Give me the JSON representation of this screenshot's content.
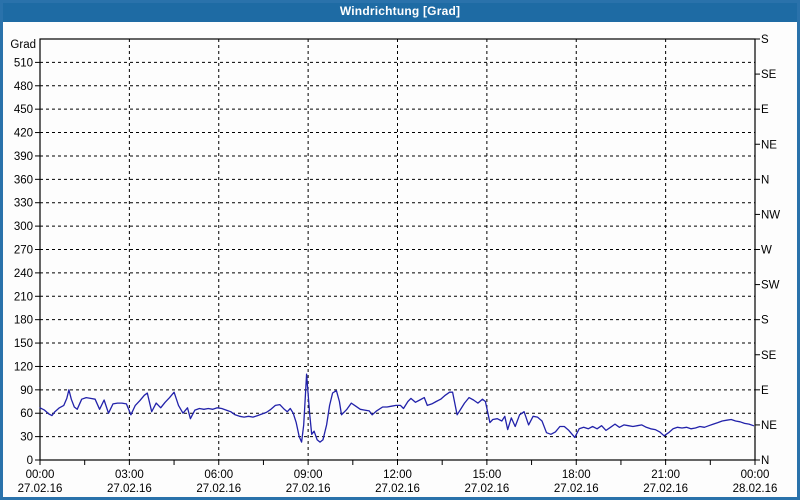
{
  "window": {
    "title": "Windrichtung [Grad]"
  },
  "colors": {
    "titlebar": "#1e6ba4",
    "frame": "#2a72ab",
    "title_text": "#ffffff",
    "plot_background": "#fdfdfd",
    "plot_border": "#000000",
    "grid": "#000000",
    "label": "#000000",
    "series_line": "#2222aa"
  },
  "chart_data": {
    "type": "line",
    "title": "Windrichtung [Grad]",
    "ylabel": "Grad",
    "grid": "dashed, every 30 deg horizontal, every 3 h vertical",
    "legend_position": "none",
    "y_axis_left": {
      "label": "Grad",
      "min": 0,
      "max": 540,
      "tick_step": 30,
      "tick_labels": [
        0,
        30,
        60,
        90,
        120,
        150,
        180,
        210,
        240,
        270,
        300,
        330,
        360,
        390,
        420,
        450,
        480,
        510
      ]
    },
    "y_axis_right": {
      "unit": "compass",
      "tick_step_degrees": 45,
      "labels_bottom_to_top": [
        "N",
        "NE",
        "E",
        "SE",
        "S",
        "SW",
        "W",
        "NW",
        "N",
        "NE",
        "E",
        "SE",
        "S"
      ]
    },
    "x_axis": {
      "range_hours": [
        0,
        24
      ],
      "major_tick_hours": 3,
      "minor_tick_hours": 1.5,
      "ticks": [
        {
          "hour": 0,
          "time": "00:00",
          "date": "27.02.16"
        },
        {
          "hour": 3,
          "time": "03:00",
          "date": "27.02.16"
        },
        {
          "hour": 6,
          "time": "06:00",
          "date": "27.02.16"
        },
        {
          "hour": 9,
          "time": "09:00",
          "date": "27.02.16"
        },
        {
          "hour": 12,
          "time": "12:00",
          "date": "27.02.16"
        },
        {
          "hour": 15,
          "time": "15:00",
          "date": "27.02.16"
        },
        {
          "hour": 18,
          "time": "18:00",
          "date": "27.02.16"
        },
        {
          "hour": 21,
          "time": "21:00",
          "date": "27.02.16"
        },
        {
          "hour": 24,
          "time": "00:00",
          "date": "28.02.16"
        }
      ]
    },
    "series": [
      {
        "name": "Windrichtung",
        "color": "#2222aa",
        "points_hour_deg": [
          [
            0.0,
            67
          ],
          [
            0.15,
            64
          ],
          [
            0.3,
            59
          ],
          [
            0.4,
            57
          ],
          [
            0.5,
            62
          ],
          [
            0.65,
            67
          ],
          [
            0.8,
            70
          ],
          [
            0.9,
            79
          ],
          [
            0.97,
            90
          ],
          [
            1.05,
            78
          ],
          [
            1.15,
            68
          ],
          [
            1.25,
            65
          ],
          [
            1.4,
            78
          ],
          [
            1.55,
            80
          ],
          [
            1.7,
            79
          ],
          [
            1.85,
            78
          ],
          [
            2.0,
            65
          ],
          [
            2.15,
            77
          ],
          [
            2.3,
            60
          ],
          [
            2.45,
            72
          ],
          [
            2.6,
            73
          ],
          [
            2.75,
            73
          ],
          [
            2.9,
            72
          ],
          [
            3.05,
            58
          ],
          [
            3.2,
            70
          ],
          [
            3.35,
            76
          ],
          [
            3.5,
            83
          ],
          [
            3.6,
            86
          ],
          [
            3.75,
            62
          ],
          [
            3.9,
            73
          ],
          [
            4.05,
            67
          ],
          [
            4.2,
            74
          ],
          [
            4.35,
            80
          ],
          [
            4.5,
            87
          ],
          [
            4.65,
            70
          ],
          [
            4.8,
            60
          ],
          [
            4.95,
            67
          ],
          [
            5.05,
            53
          ],
          [
            5.2,
            64
          ],
          [
            5.35,
            66
          ],
          [
            5.5,
            65
          ],
          [
            5.65,
            66
          ],
          [
            5.8,
            65
          ],
          [
            5.95,
            67
          ],
          [
            6.1,
            66
          ],
          [
            6.25,
            64
          ],
          [
            6.4,
            62
          ],
          [
            6.55,
            58
          ],
          [
            6.7,
            56
          ],
          [
            6.85,
            55
          ],
          [
            7.0,
            56
          ],
          [
            7.15,
            55
          ],
          [
            7.3,
            57
          ],
          [
            7.45,
            59
          ],
          [
            7.6,
            61
          ],
          [
            7.75,
            65
          ],
          [
            7.9,
            70
          ],
          [
            8.05,
            71
          ],
          [
            8.2,
            65
          ],
          [
            8.3,
            62
          ],
          [
            8.4,
            66
          ],
          [
            8.5,
            60
          ],
          [
            8.6,
            48
          ],
          [
            8.7,
            30
          ],
          [
            8.78,
            23
          ],
          [
            8.85,
            45
          ],
          [
            8.95,
            110
          ],
          [
            9.05,
            60
          ],
          [
            9.12,
            33
          ],
          [
            9.2,
            37
          ],
          [
            9.3,
            26
          ],
          [
            9.4,
            23
          ],
          [
            9.5,
            26
          ],
          [
            9.62,
            45
          ],
          [
            9.72,
            70
          ],
          [
            9.82,
            86
          ],
          [
            9.95,
            89
          ],
          [
            10.05,
            75
          ],
          [
            10.12,
            58
          ],
          [
            10.3,
            65
          ],
          [
            10.45,
            73
          ],
          [
            10.6,
            69
          ],
          [
            10.75,
            65
          ],
          [
            10.9,
            64
          ],
          [
            11.05,
            63
          ],
          [
            11.15,
            58
          ],
          [
            11.3,
            63
          ],
          [
            11.5,
            68
          ],
          [
            11.65,
            68
          ],
          [
            11.8,
            69
          ],
          [
            11.95,
            70
          ],
          [
            12.1,
            70
          ],
          [
            12.2,
            66
          ],
          [
            12.35,
            75
          ],
          [
            12.45,
            79
          ],
          [
            12.6,
            74
          ],
          [
            12.75,
            77
          ],
          [
            12.9,
            80
          ],
          [
            13.0,
            70
          ],
          [
            13.15,
            72
          ],
          [
            13.3,
            75
          ],
          [
            13.45,
            78
          ],
          [
            13.6,
            83
          ],
          [
            13.75,
            87
          ],
          [
            13.85,
            87
          ],
          [
            14.0,
            58
          ],
          [
            14.1,
            64
          ],
          [
            14.25,
            73
          ],
          [
            14.4,
            80
          ],
          [
            14.55,
            77
          ],
          [
            14.7,
            73
          ],
          [
            14.85,
            78
          ],
          [
            14.95,
            75
          ],
          [
            15.1,
            48
          ],
          [
            15.2,
            52
          ],
          [
            15.35,
            53
          ],
          [
            15.5,
            50
          ],
          [
            15.6,
            56
          ],
          [
            15.7,
            39
          ],
          [
            15.82,
            54
          ],
          [
            15.95,
            43
          ],
          [
            16.1,
            58
          ],
          [
            16.25,
            62
          ],
          [
            16.4,
            45
          ],
          [
            16.55,
            56
          ],
          [
            16.7,
            55
          ],
          [
            16.85,
            50
          ],
          [
            17.0,
            35
          ],
          [
            17.15,
            33
          ],
          [
            17.3,
            36
          ],
          [
            17.45,
            43
          ],
          [
            17.6,
            43
          ],
          [
            17.75,
            38
          ],
          [
            17.95,
            29
          ],
          [
            18.1,
            40
          ],
          [
            18.25,
            42
          ],
          [
            18.4,
            40
          ],
          [
            18.55,
            43
          ],
          [
            18.7,
            40
          ],
          [
            18.85,
            44
          ],
          [
            19.0,
            38
          ],
          [
            19.15,
            42
          ],
          [
            19.3,
            46
          ],
          [
            19.45,
            42
          ],
          [
            19.6,
            45
          ],
          [
            19.75,
            44
          ],
          [
            19.9,
            43
          ],
          [
            20.05,
            44
          ],
          [
            20.2,
            45
          ],
          [
            20.35,
            42
          ],
          [
            20.5,
            40
          ],
          [
            20.65,
            39
          ],
          [
            20.8,
            36
          ],
          [
            20.95,
            31
          ],
          [
            21.1,
            35
          ],
          [
            21.25,
            40
          ],
          [
            21.4,
            42
          ],
          [
            21.55,
            41
          ],
          [
            21.7,
            42
          ],
          [
            21.85,
            40
          ],
          [
            22.0,
            41
          ],
          [
            22.15,
            43
          ],
          [
            22.3,
            42
          ],
          [
            22.45,
            44
          ],
          [
            22.6,
            46
          ],
          [
            22.75,
            48
          ],
          [
            22.9,
            50
          ],
          [
            23.05,
            51
          ],
          [
            23.2,
            52
          ],
          [
            23.35,
            50
          ],
          [
            23.5,
            49
          ],
          [
            23.65,
            47
          ],
          [
            23.8,
            46
          ],
          [
            23.95,
            44
          ]
        ]
      }
    ]
  }
}
